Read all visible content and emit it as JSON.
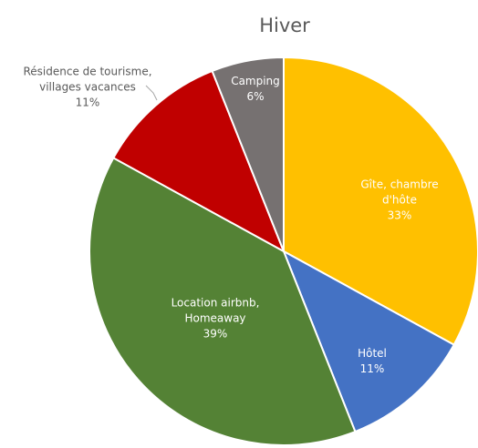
{
  "chart_data": {
    "type": "pie",
    "title": "Hiver",
    "categories": [
      "Gîte, chambre d'hôte",
      "Hôtel",
      "Location airbnb, Homeaway",
      "Résidence de tourisme, villages vacances",
      "Camping"
    ],
    "values": [
      33,
      11,
      39,
      11,
      6
    ],
    "value_labels": [
      "33%",
      "11%",
      "39%",
      "11%",
      "6%"
    ],
    "colors": [
      "#FFC000",
      "#4472C4",
      "#548235",
      "#C00000",
      "#767171"
    ]
  }
}
